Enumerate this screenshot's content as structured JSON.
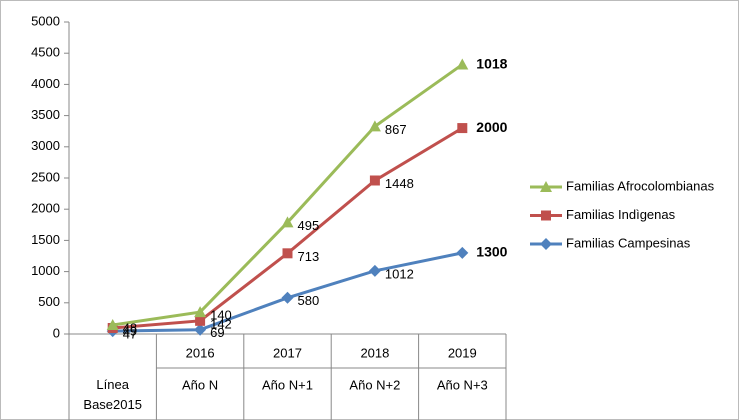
{
  "chart_data": {
    "type": "line",
    "stacked": true,
    "categories": [
      "Línea Base2015",
      "Año N",
      "Año N+1",
      "Año N+2",
      "Año N+3"
    ],
    "category_groups": [
      null,
      "2016",
      "2017",
      "2018",
      "2019"
    ],
    "series": [
      {
        "name": "Familias Campesinas",
        "color": "#4f81bd",
        "marker": "diamond",
        "values": [
          47,
          69,
          580,
          1012,
          1300
        ]
      },
      {
        "name": "Familias Indìgenas",
        "color": "#c0504d",
        "marker": "square",
        "values": [
          49,
          142,
          713,
          1448,
          2000
        ]
      },
      {
        "name": "Familias Afrocolombianas",
        "color": "#9bbb59",
        "marker": "triangle",
        "values": [
          48,
          140,
          495,
          867,
          1018
        ]
      }
    ],
    "ylim": [
      0,
      5000
    ],
    "yticks": [
      0,
      500,
      1000,
      1500,
      2000,
      2500,
      3000,
      3500,
      4000,
      4500,
      5000
    ],
    "grid": false,
    "legend": "right"
  }
}
